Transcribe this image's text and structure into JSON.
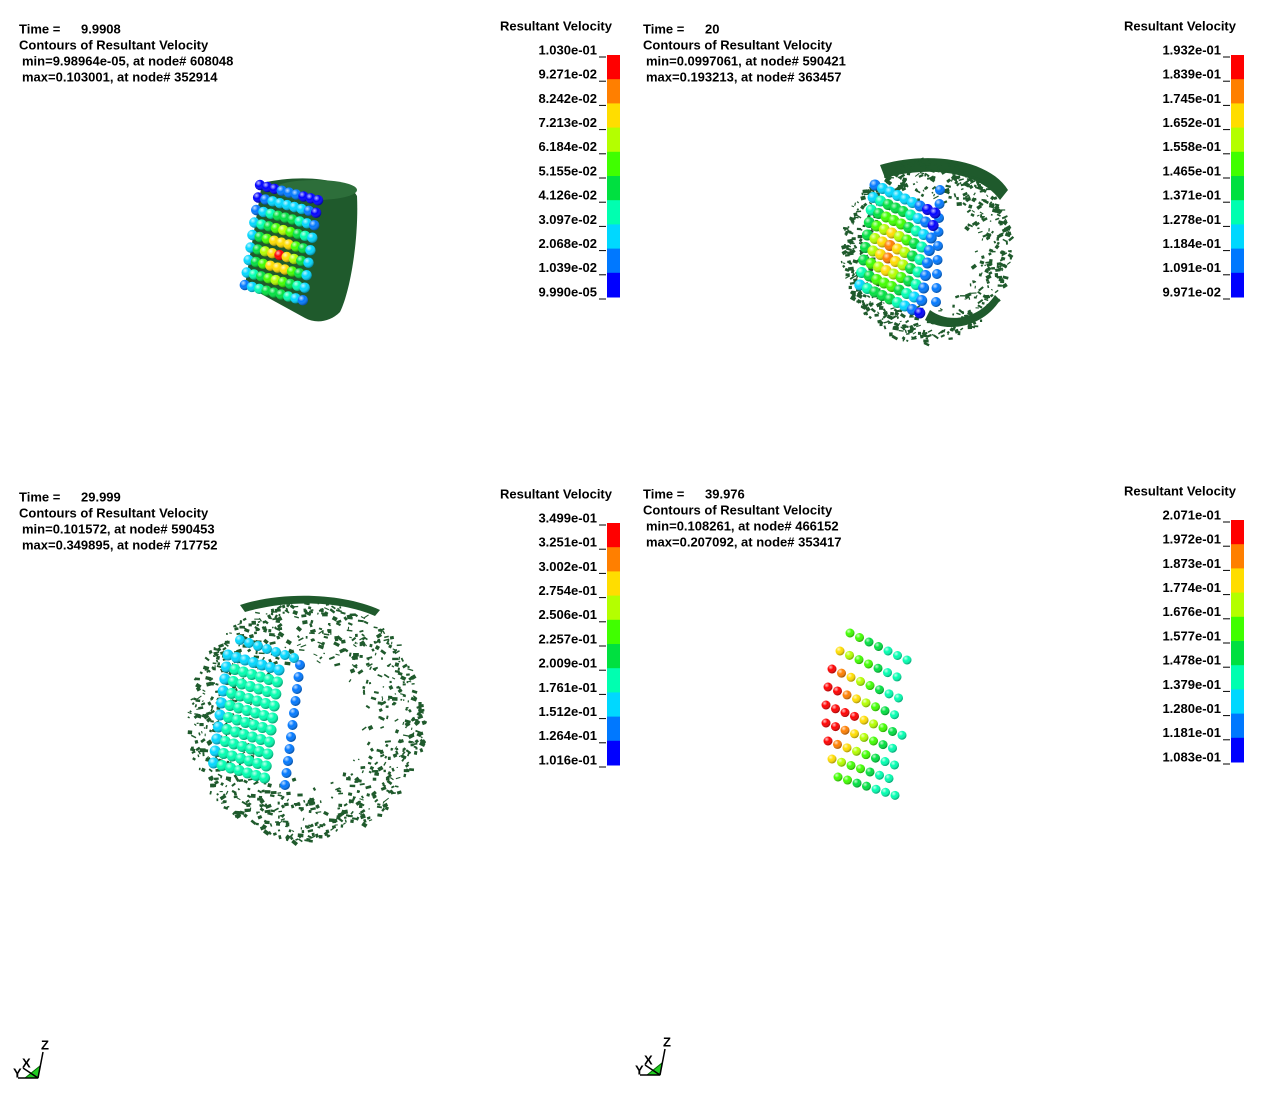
{
  "panels": [
    {
      "time_label": "Time =",
      "time_value": "9.9908",
      "heading": "Contours of Resultant Velocity",
      "min_text": "min=9.98964e-05, at node# 608048",
      "max_text": "max=0.103001, at node# 352914",
      "legend_title": "Resultant Velocity",
      "legend_labels": [
        "1.030e-01",
        "9.271e-02",
        "8.242e-02",
        "7.213e-02",
        "6.184e-02",
        "5.155e-02",
        "4.126e-02",
        "3.097e-02",
        "2.068e-02",
        "1.039e-02",
        "9.990e-05"
      ]
    },
    {
      "time_label": "Time =",
      "time_value": "20",
      "heading": "Contours of Resultant Velocity",
      "min_text": "min=0.0997061, at node# 590421",
      "max_text": "max=0.193213, at node# 363457",
      "legend_title": "Resultant Velocity",
      "legend_labels": [
        "1.932e-01",
        "1.839e-01",
        "1.745e-01",
        "1.652e-01",
        "1.558e-01",
        "1.465e-01",
        "1.371e-01",
        "1.278e-01",
        "1.184e-01",
        "1.091e-01",
        "9.971e-02"
      ]
    },
    {
      "time_label": "Time =",
      "time_value": "29.999",
      "heading": "Contours of Resultant Velocity",
      "min_text": "min=0.101572, at node# 590453",
      "max_text": "max=0.349895, at node# 717752",
      "legend_title": "Resultant Velocity",
      "legend_labels": [
        "3.499e-01",
        "3.251e-01",
        "3.002e-01",
        "2.754e-01",
        "2.506e-01",
        "2.257e-01",
        "2.009e-01",
        "1.761e-01",
        "1.512e-01",
        "1.264e-01",
        "1.016e-01"
      ]
    },
    {
      "time_label": "Time =",
      "time_value": "39.976",
      "heading": "Contours of Resultant Velocity",
      "min_text": "min=0.108261, at node# 466152",
      "max_text": "max=0.207092, at node# 353417",
      "legend_title": "Resultant Velocity",
      "legend_labels": [
        "2.071e-01",
        "1.972e-01",
        "1.873e-01",
        "1.774e-01",
        "1.676e-01",
        "1.577e-01",
        "1.478e-01",
        "1.379e-01",
        "1.280e-01",
        "1.181e-01",
        "1.083e-01"
      ]
    }
  ],
  "triads": [
    {
      "z": "Z",
      "x": "X",
      "y": "Y"
    },
    {
      "z": "Z",
      "x": "X",
      "y": "Y"
    }
  ]
}
